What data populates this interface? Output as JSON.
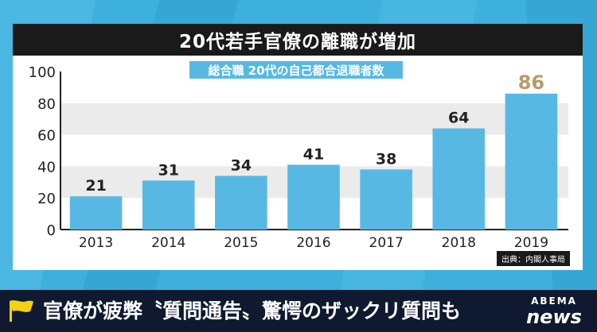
{
  "colors": {
    "background": "#3db0dd",
    "bar": "#57b9e3",
    "highlight_label": "#b79b6a",
    "title_bar": "#1a1a1a",
    "caption_bar": "#0f1a30",
    "flag": "#f5d210"
  },
  "headline": {
    "text": "官僚が疲弊〝質問通告〟驚愕のザックリ質問も",
    "flag_icon": "yellow-flag-icon"
  },
  "logo": {
    "top": "ABEMA",
    "bottom": "news"
  },
  "chart_data": {
    "type": "bar",
    "title": "20代若手官僚の離職が増加",
    "subtitle": "総合職 20代の自己都合退職者数",
    "categories": [
      "2013",
      "2014",
      "2015",
      "2016",
      "2017",
      "2018",
      "2019"
    ],
    "values": [
      21,
      31,
      34,
      41,
      38,
      64,
      86
    ],
    "data_labels": [
      "21",
      "31",
      "34",
      "41",
      "38",
      "64",
      "86"
    ],
    "highlight_index": 6,
    "ylim": [
      0,
      100
    ],
    "yticks": [
      "0",
      "20",
      "40",
      "60",
      "80",
      "100"
    ],
    "ytick_values": [
      0,
      20,
      40,
      60,
      80,
      100
    ],
    "grid": "alternating bands",
    "source": "出典：内閣人事局"
  }
}
